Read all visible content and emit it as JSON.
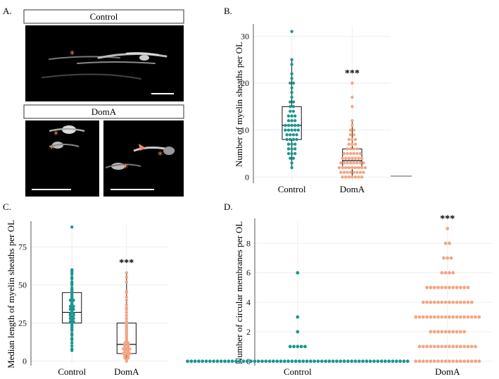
{
  "panel_letters": [
    "A.",
    "B.",
    "C.",
    "D."
  ],
  "panel_a": {
    "control_label": "Control",
    "doma_label": "DomA",
    "asterisk": "*"
  },
  "colors": {
    "control": "#1e9590",
    "doma": "#f4a582",
    "marker": "#f08a5d",
    "box": "#111111",
    "grid": "#eeeeee"
  },
  "significance": "***",
  "chart_data": [
    {
      "panel": "B.",
      "type": "scatter",
      "subtype": "boxplot-with-dotplot",
      "ylabel": "Number of myelin sheaths per OL",
      "categories": [
        "Control",
        "DomA"
      ],
      "yticks": [
        0,
        10,
        20,
        30
      ],
      "ylim": [
        -1,
        32
      ],
      "grid": true,
      "series": [
        {
          "name": "Control",
          "values": [
            2,
            3,
            4,
            4,
            5,
            5,
            5,
            6,
            6,
            6,
            7,
            7,
            7,
            8,
            8,
            8,
            8,
            9,
            9,
            9,
            9,
            10,
            10,
            10,
            10,
            10,
            11,
            11,
            11,
            11,
            11,
            12,
            12,
            12,
            13,
            13,
            13,
            14,
            14,
            15,
            15,
            16,
            16,
            17,
            18,
            19,
            20,
            20,
            21,
            22,
            24,
            25,
            31
          ],
          "box": {
            "q1": 8,
            "median": 11,
            "q3": 15,
            "whisker_low": 2,
            "whisker_high": 25
          }
        },
        {
          "name": "DomA",
          "values": [
            0,
            0,
            0,
            0,
            0,
            0,
            0,
            1,
            1,
            1,
            1,
            1,
            1,
            1,
            1,
            2,
            2,
            2,
            2,
            2,
            2,
            2,
            2,
            2,
            3,
            3,
            3,
            3,
            3,
            3,
            3,
            3,
            4,
            4,
            4,
            4,
            4,
            4,
            4,
            5,
            5,
            5,
            5,
            5,
            5,
            6,
            6,
            6,
            6,
            7,
            7,
            7,
            8,
            8,
            8,
            9,
            9,
            10,
            10,
            11,
            12,
            15,
            17,
            20
          ],
          "box": {
            "q1": 2,
            "median": 3.5,
            "q3": 6,
            "whisker_low": 0,
            "whisker_high": 12
          }
        }
      ]
    },
    {
      "panel": "C.",
      "type": "scatter",
      "subtype": "boxplot-with-dotplot",
      "ylabel": "Median length of myelin sheaths per OL",
      "categories": [
        "Control",
        "DomA"
      ],
      "yticks": [
        0,
        25,
        50,
        75
      ],
      "ylim": [
        -2,
        90
      ],
      "grid": true,
      "series": [
        {
          "name": "Control",
          "values": [
            7,
            8,
            10,
            12,
            14,
            15,
            17,
            18,
            20,
            21,
            22,
            23,
            24,
            25,
            26,
            26,
            27,
            28,
            28,
            29,
            30,
            30,
            31,
            31,
            32,
            33,
            34,
            34,
            35,
            36,
            36,
            37,
            38,
            39,
            40,
            40,
            41,
            42,
            43,
            44,
            45,
            46,
            47,
            48,
            50,
            51,
            52,
            54,
            55,
            57,
            58,
            59,
            60,
            88
          ],
          "box": {
            "q1": 25,
            "median": 32,
            "q3": 45,
            "whisker_low": 7,
            "whisker_high": 60
          }
        },
        {
          "name": "DomA",
          "values": [
            0,
            1,
            2,
            2,
            3,
            3,
            4,
            4,
            5,
            5,
            5,
            6,
            6,
            7,
            7,
            8,
            8,
            8,
            9,
            9,
            10,
            10,
            11,
            11,
            12,
            12,
            13,
            14,
            15,
            16,
            17,
            18,
            19,
            20,
            21,
            22,
            23,
            24,
            25,
            26,
            28,
            30,
            32,
            34,
            35,
            37,
            40,
            42,
            45,
            46,
            52,
            55,
            58
          ],
          "box": {
            "q1": 5,
            "median": 11,
            "q3": 25,
            "whisker_low": 0,
            "whisker_high": 58
          }
        }
      ]
    },
    {
      "panel": "D.",
      "type": "scatter",
      "subtype": "dotplot",
      "ylabel": "Number of circular membranes per OL",
      "categories": [
        "Control",
        "DomA"
      ],
      "yticks": [
        0,
        2,
        4,
        6,
        8
      ],
      "ylim": [
        -0.2,
        9.5
      ],
      "grid": true,
      "series": [
        {
          "name": "Control",
          "counts": {
            "0": 60,
            "1": 5,
            "2": 1,
            "3": 1,
            "6": 1
          }
        },
        {
          "name": "DomA",
          "counts": {
            "0": 18,
            "1": 16,
            "2": 10,
            "3": 18,
            "4": 14,
            "5": 12,
            "6": 4,
            "7": 3,
            "8": 2,
            "9": 1
          }
        }
      ]
    }
  ]
}
